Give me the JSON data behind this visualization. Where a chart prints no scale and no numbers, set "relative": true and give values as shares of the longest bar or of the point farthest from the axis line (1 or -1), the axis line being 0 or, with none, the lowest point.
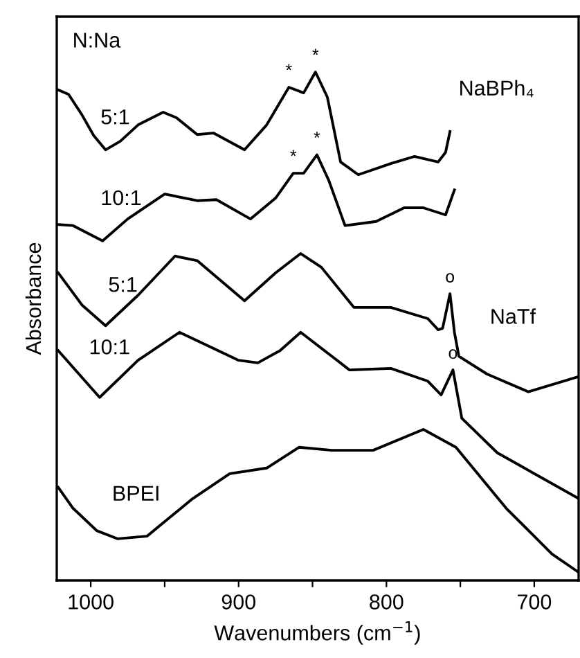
{
  "chart_data": {
    "type": "line",
    "relative": true,
    "xlabel": "Wavenumbers (cm$^{−1}$)",
    "ylabel": "Absorbance",
    "xlim": [
      1023,
      670
    ],
    "xticks": [
      1000,
      {
        "value": 950,
        "label": null
      },
      900,
      {
        "value": 850,
        "label": null
      },
      800,
      {
        "value": 750,
        "label": null
      },
      700
    ],
    "tick_labels": "x",
    "grid": false,
    "legend": false,
    "marker": "none",
    "line_style": "solid",
    "series": [
      {
        "name": "5:1",
        "color": "#000000",
        "x": [
          1022,
          1015,
          1006,
          998,
          990,
          980,
          968,
          951,
          942,
          928,
          917,
          896,
          881,
          866,
          856,
          848,
          840,
          831,
          819,
          797,
          781,
          765,
          760,
          757
        ],
        "values": [
          0.965,
          0.956,
          0.916,
          0.875,
          0.847,
          0.864,
          0.896,
          0.921,
          0.91,
          0.877,
          0.88,
          0.847,
          0.896,
          0.97,
          0.959,
          1.0,
          0.951,
          0.823,
          0.798,
          0.82,
          0.834,
          0.823,
          0.842,
          0.883
        ]
      },
      {
        "name": "10:1",
        "color": "#000000",
        "x": [
          1022,
          1012,
          992,
          975,
          950,
          928,
          915,
          892,
          875,
          863,
          856,
          847,
          839,
          828,
          807,
          788,
          775,
          760,
          754
        ],
        "values": [
          0.7,
          0.698,
          0.668,
          0.711,
          0.76,
          0.747,
          0.749,
          0.711,
          0.752,
          0.801,
          0.801,
          0.837,
          0.787,
          0.698,
          0.706,
          0.733,
          0.733,
          0.719,
          0.768
        ]
      },
      {
        "name": "5:1",
        "color": "#000000",
        "x": [
          1022,
          1006,
          990,
          968,
          943,
          928,
          896,
          875,
          858,
          844,
          822,
          797,
          772,
          765,
          762,
          760,
          757,
          754,
          751,
          732,
          704,
          670
        ],
        "values": [
          0.605,
          0.542,
          0.501,
          0.561,
          0.638,
          0.629,
          0.55,
          0.605,
          0.643,
          0.616,
          0.537,
          0.537,
          0.515,
          0.493,
          0.496,
          0.523,
          0.564,
          0.488,
          0.441,
          0.406,
          0.371,
          0.401
        ]
      },
      {
        "name": "10:1",
        "color": "#000000",
        "x": [
          1022,
          994,
          968,
          940,
          900,
          887,
          872,
          858,
          837,
          825,
          797,
          772,
          763,
          755,
          749,
          725,
          670
        ],
        "values": [
          0.452,
          0.36,
          0.433,
          0.488,
          0.433,
          0.428,
          0.452,
          0.488,
          0.441,
          0.414,
          0.417,
          0.392,
          0.365,
          0.414,
          0.319,
          0.251,
          0.161
        ]
      },
      {
        "name": "BPEI",
        "color": "#000000",
        "x": [
          1022,
          1012,
          996,
          982,
          962,
          931,
          906,
          881,
          859,
          837,
          809,
          775,
          753,
          719,
          688,
          670
        ],
        "values": [
          0.183,
          0.142,
          0.098,
          0.082,
          0.087,
          0.161,
          0.21,
          0.221,
          0.262,
          0.256,
          0.256,
          0.297,
          0.262,
          0.142,
          0.052,
          0.016
        ]
      }
    ],
    "annotations": [
      "N:Na",
      "NaBPh₄",
      "NaTf",
      {
        "text": "*",
        "x": 866,
        "y": 0.97
      },
      {
        "text": "*",
        "x": 848,
        "y": 1.0
      },
      {
        "text": "*",
        "x": 863,
        "y": 0.801
      },
      {
        "text": "*",
        "x": 847,
        "y": 0.837
      },
      {
        "text": "o",
        "x": 757,
        "y": 0.564
      },
      {
        "text": "o",
        "x": 755,
        "y": 0.414
      }
    ]
  }
}
